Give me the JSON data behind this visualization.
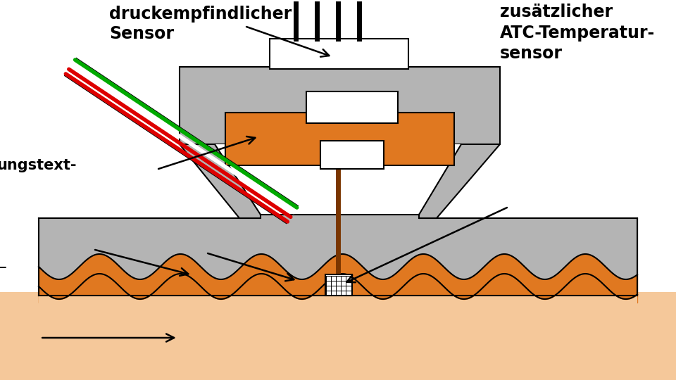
{
  "bg_color": "#ffffff",
  "gray_color": "#b4b4b4",
  "orange_color": "#e07820",
  "black": "#000000",
  "white": "#ffffff",
  "skin_color": "#f5c89a",
  "brown": "#7a3500",
  "red_wire": "#dd0000",
  "green_wire": "#00aa00",
  "wire_white": "#ffffff",
  "label_druckempfindlicher": "druckempfindlicher\nSensor",
  "label_zusaetzlicher": "zusätzlicher\nATC-Temperatur-\nsensor",
  "label_ungs": "ungstext",
  "figsize": [
    9.6,
    5.4
  ],
  "dpi": 100
}
